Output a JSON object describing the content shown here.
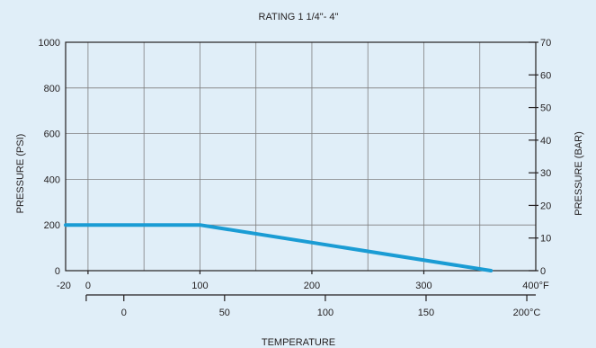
{
  "chart_data": {
    "type": "line",
    "title": "RATING 1 1/4\"- 4\"",
    "ylabel": "PRESSURE  (PSI)",
    "y2label": "PRESSURE  (BAR)",
    "xlabel": "TEMPERATURE",
    "ylim": [
      0,
      1000
    ],
    "y2lim": [
      0,
      70
    ],
    "xlim_f": [
      -20,
      400
    ],
    "y_ticks": [
      "0",
      "200",
      "400",
      "600",
      "800",
      "1000"
    ],
    "y2_ticks": [
      "0",
      "10",
      "20",
      "30",
      "40",
      "50",
      "60",
      "70"
    ],
    "x_ticks_f": [
      "-20",
      "0",
      "100",
      "200",
      "300",
      "400°F"
    ],
    "x_ticks_c": [
      "0",
      "50",
      "100",
      "150",
      "200°C"
    ],
    "grid": true,
    "series": [
      {
        "x": [
          -20,
          100,
          360
        ],
        "y": [
          200,
          200,
          0
        ]
      }
    ]
  }
}
